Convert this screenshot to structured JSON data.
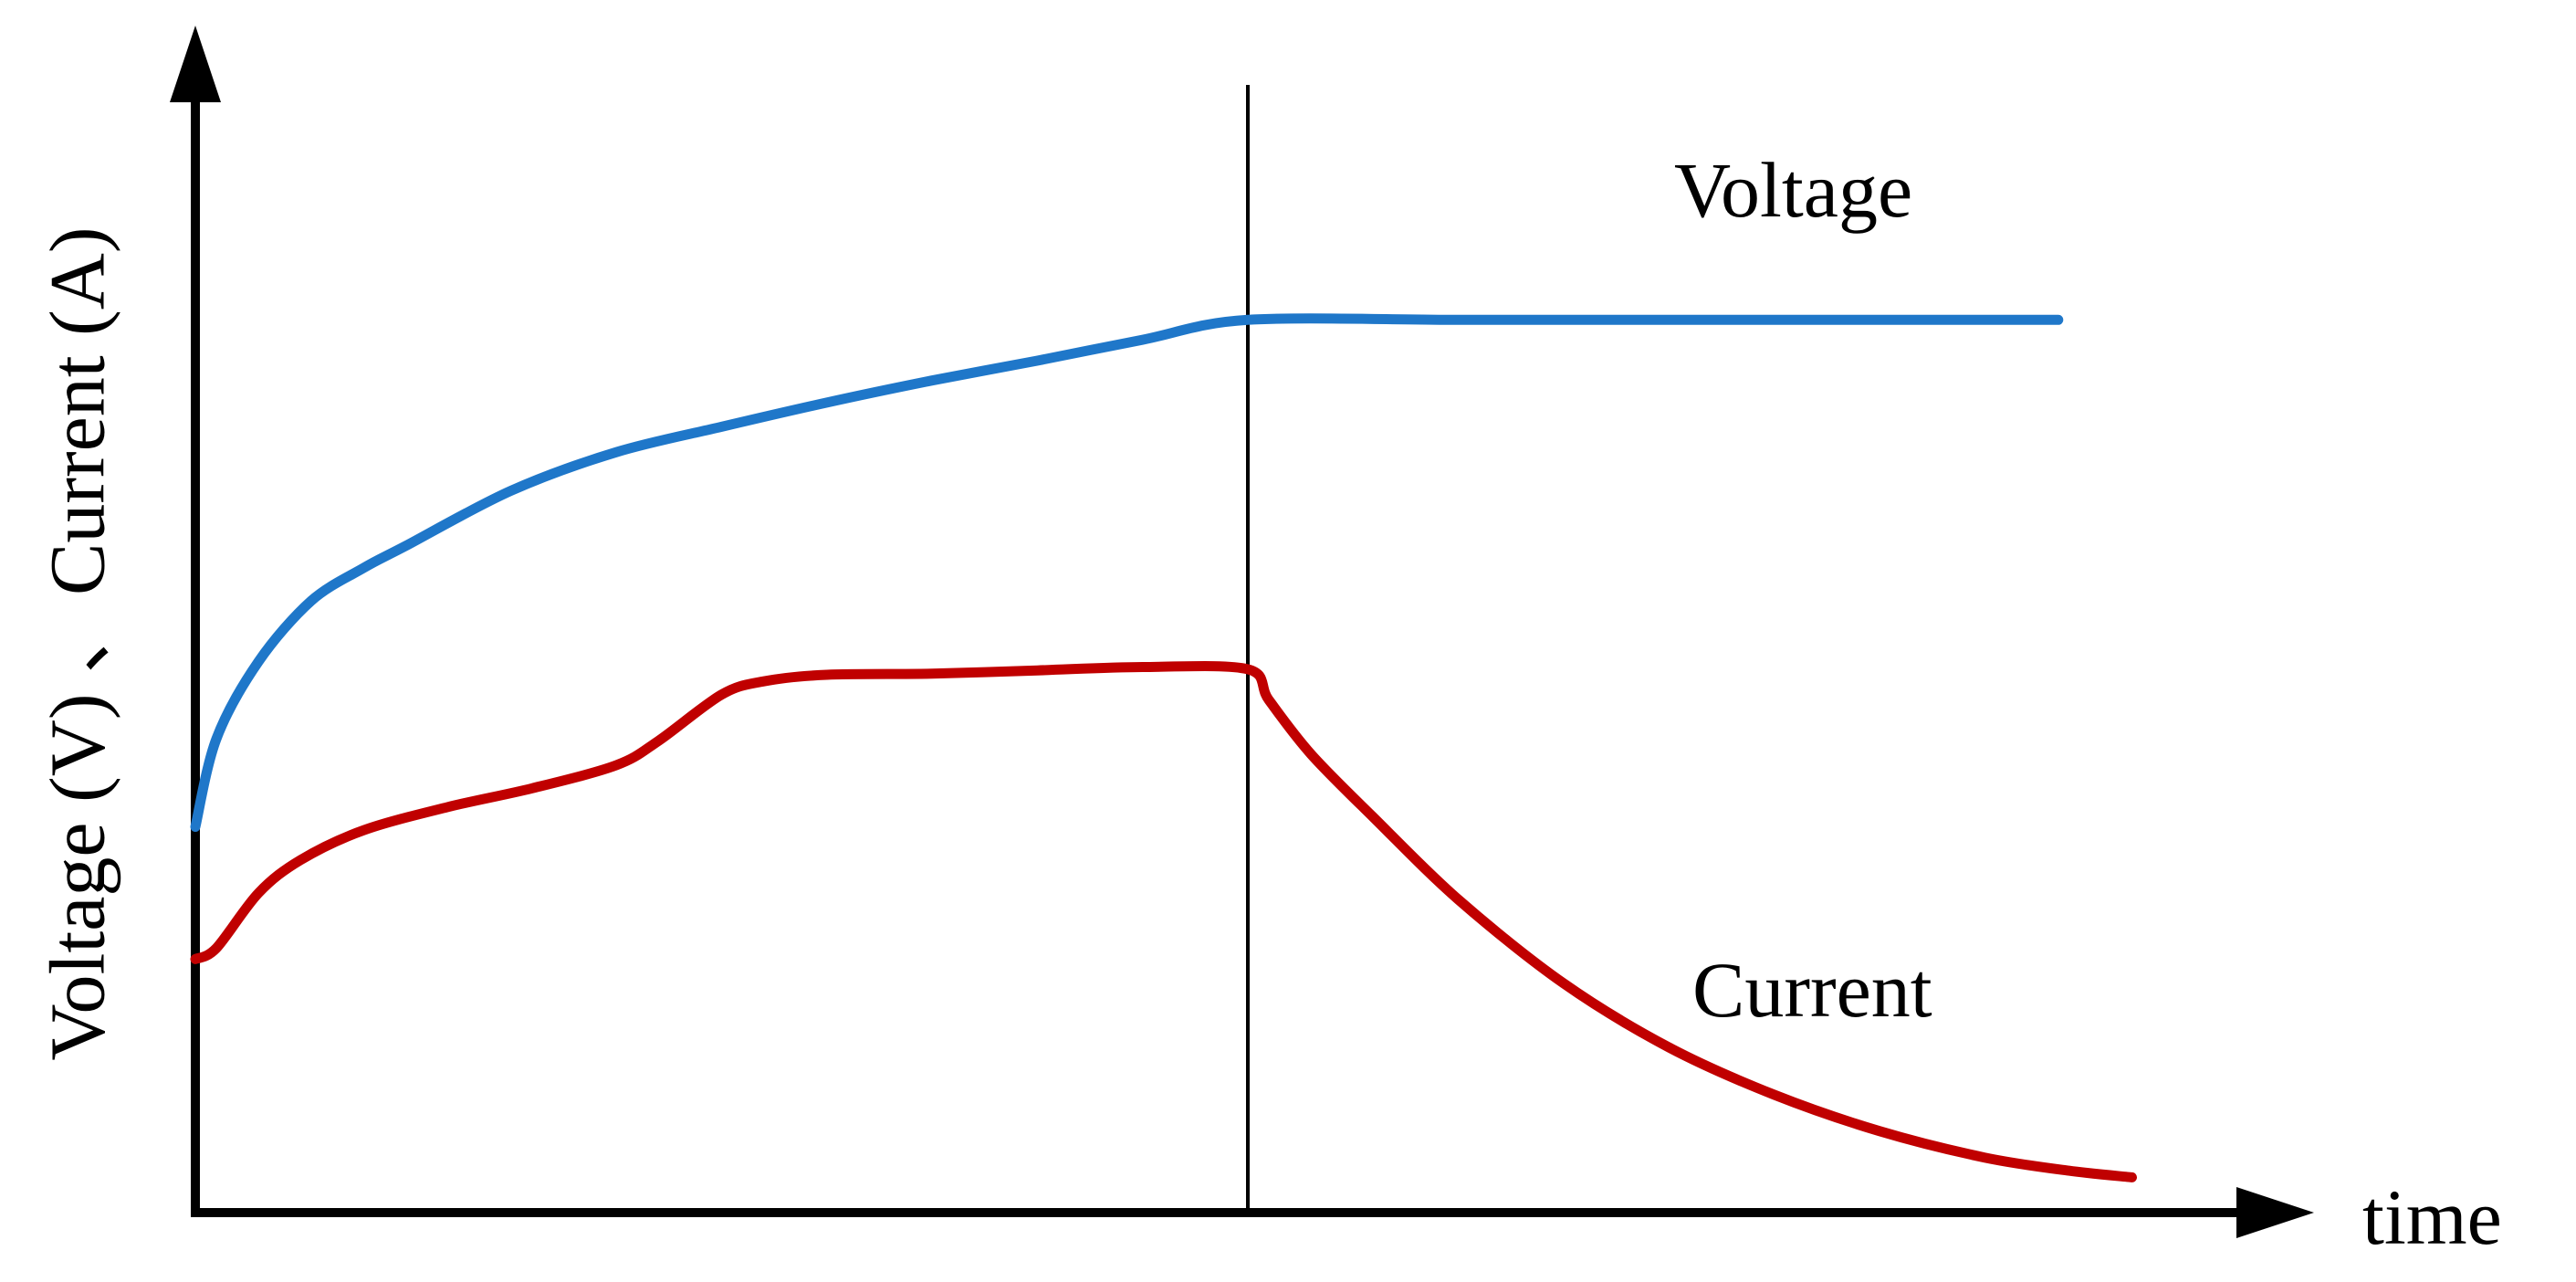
{
  "chart_data": {
    "type": "line",
    "xlabel": "time",
    "ylabel": "Voltage (V) 、Current (A)",
    "xlim": [
      0,
      100
    ],
    "ylim": [
      0,
      100
    ],
    "grid": false,
    "legend": "none",
    "x_ticks": [],
    "y_ticks": [],
    "divider_x": 50,
    "series": [
      {
        "name": "Voltage",
        "color": "#1f77c9",
        "points": [
          [
            0,
            35
          ],
          [
            1,
            43
          ],
          [
            3,
            50
          ],
          [
            5.5,
            55.5
          ],
          [
            8,
            58.5
          ],
          [
            10,
            60.5
          ],
          [
            15,
            65.5
          ],
          [
            20,
            69
          ],
          [
            25,
            71.3
          ],
          [
            30,
            73.5
          ],
          [
            35,
            75.5
          ],
          [
            40,
            77.3
          ],
          [
            45,
            79.2
          ],
          [
            50,
            81
          ],
          [
            60,
            81
          ],
          [
            70,
            81
          ],
          [
            80,
            81
          ],
          [
            88.5,
            81
          ]
        ]
      },
      {
        "name": "Current",
        "color": "#c00000",
        "points": [
          [
            0,
            23
          ],
          [
            1,
            24
          ],
          [
            3,
            29
          ],
          [
            5,
            32
          ],
          [
            8,
            34.7
          ],
          [
            12,
            36.8
          ],
          [
            16,
            38.5
          ],
          [
            20,
            40.6
          ],
          [
            22,
            42.8
          ],
          [
            25,
            47
          ],
          [
            27,
            48.2
          ],
          [
            30,
            48.8
          ],
          [
            35,
            48.9
          ],
          [
            40,
            49.2
          ],
          [
            45,
            49.5
          ],
          [
            50,
            49.3
          ],
          [
            51,
            46.5
          ],
          [
            53,
            41.6
          ],
          [
            56,
            35.8
          ],
          [
            60,
            28.4
          ],
          [
            65,
            20.8
          ],
          [
            70,
            15
          ],
          [
            75,
            10.7
          ],
          [
            80,
            7.4
          ],
          [
            85,
            5
          ],
          [
            89,
            3.8
          ],
          [
            92,
            3.2
          ]
        ]
      }
    ]
  }
}
